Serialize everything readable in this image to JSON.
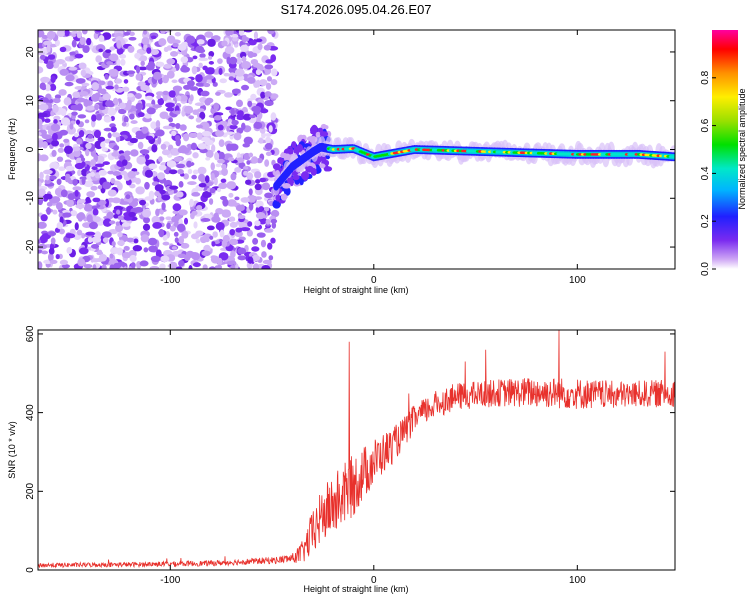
{
  "chart_data": [
    {
      "type": "heatmap",
      "title": "S174.2026.095.04.26.E07",
      "xlabel": "Height of straight line (km)",
      "ylabel": "Frequency (Hz)",
      "xlim": [
        -165,
        148
      ],
      "ylim": [
        -24.5,
        24.5
      ],
      "xticks": [
        -100,
        0,
        100
      ],
      "xtick_labels": [
        "-100",
        "0",
        "100"
      ],
      "yticks": [
        -20,
        -10,
        0,
        10,
        20
      ],
      "ytick_labels": [
        "-20",
        "-10",
        "0",
        "10",
        "20"
      ],
      "noise_region_x": [
        -165,
        -48
      ],
      "transition_x": [
        -48,
        -22
      ],
      "line_region_x": [
        -22,
        148
      ],
      "ridge_frequency_hz": [
        {
          "x": -48,
          "f": -7.5
        },
        {
          "x": -44,
          "f": -5.5
        },
        {
          "x": -40,
          "f": -3.5
        },
        {
          "x": -35,
          "f": -2
        },
        {
          "x": -30,
          "f": -0.5
        },
        {
          "x": -26,
          "f": 0.5
        },
        {
          "x": -20,
          "f": 0
        },
        {
          "x": -10,
          "f": 0.2
        },
        {
          "x": 0,
          "f": -1.5
        },
        {
          "x": 20,
          "f": 0
        },
        {
          "x": 60,
          "f": -0.5
        },
        {
          "x": 100,
          "f": -1
        },
        {
          "x": 130,
          "f": -1
        },
        {
          "x": 148,
          "f": -1.5
        }
      ],
      "colorbar": {
        "label": "Normalized spectral amplitude",
        "range": [
          0,
          1
        ],
        "ticks": [
          0.0,
          0.2,
          0.4,
          0.6,
          0.8
        ],
        "tick_labels": [
          "0.0",
          "0.2",
          "0.4",
          "0.6",
          "0.8"
        ],
        "colors": [
          "#ffffff",
          "#cfa8f5",
          "#7a2bf0",
          "#2020ff",
          "#00b4ff",
          "#00e8c8",
          "#00e000",
          "#9be000",
          "#ffee00",
          "#ff9000",
          "#ff0000",
          "#ff00a0"
        ]
      }
    },
    {
      "type": "line",
      "xlabel": "Height of straight line (km)",
      "ylabel": "SNR (10 * v/v)",
      "xlim": [
        -165,
        148
      ],
      "ylim": [
        0,
        610
      ],
      "xticks": [
        -100,
        0,
        100
      ],
      "xtick_labels": [
        "-100",
        "0",
        "100"
      ],
      "yticks": [
        0,
        200,
        400,
        600
      ],
      "ytick_labels": [
        "0",
        "200",
        "400",
        "600"
      ],
      "series_color": "#e8312c",
      "trend": {
        "x": [
          -165,
          -120,
          -80,
          -60,
          -48,
          -40,
          -35,
          -30,
          -25,
          -20,
          -15,
          -10,
          0,
          10,
          15,
          20,
          30,
          40,
          60,
          80,
          100,
          120,
          148
        ],
        "mean": [
          12,
          14,
          17,
          22,
          25,
          30,
          45,
          95,
          140,
          165,
          190,
          215,
          275,
          320,
          350,
          385,
          420,
          440,
          450,
          452,
          448,
          445,
          450
        ],
        "noise": [
          6,
          6,
          7,
          8,
          9,
          12,
          30,
          60,
          70,
          80,
          80,
          80,
          60,
          45,
          40,
          35,
          35,
          35,
          35,
          40,
          40,
          35,
          35
        ]
      },
      "spikes": [
        {
          "x": -12,
          "y": 580
        },
        {
          "x": 91,
          "y": 610
        },
        {
          "x": 55,
          "y": 560
        },
        {
          "x": 143,
          "y": 555
        },
        {
          "x": 45,
          "y": 530
        }
      ]
    }
  ]
}
